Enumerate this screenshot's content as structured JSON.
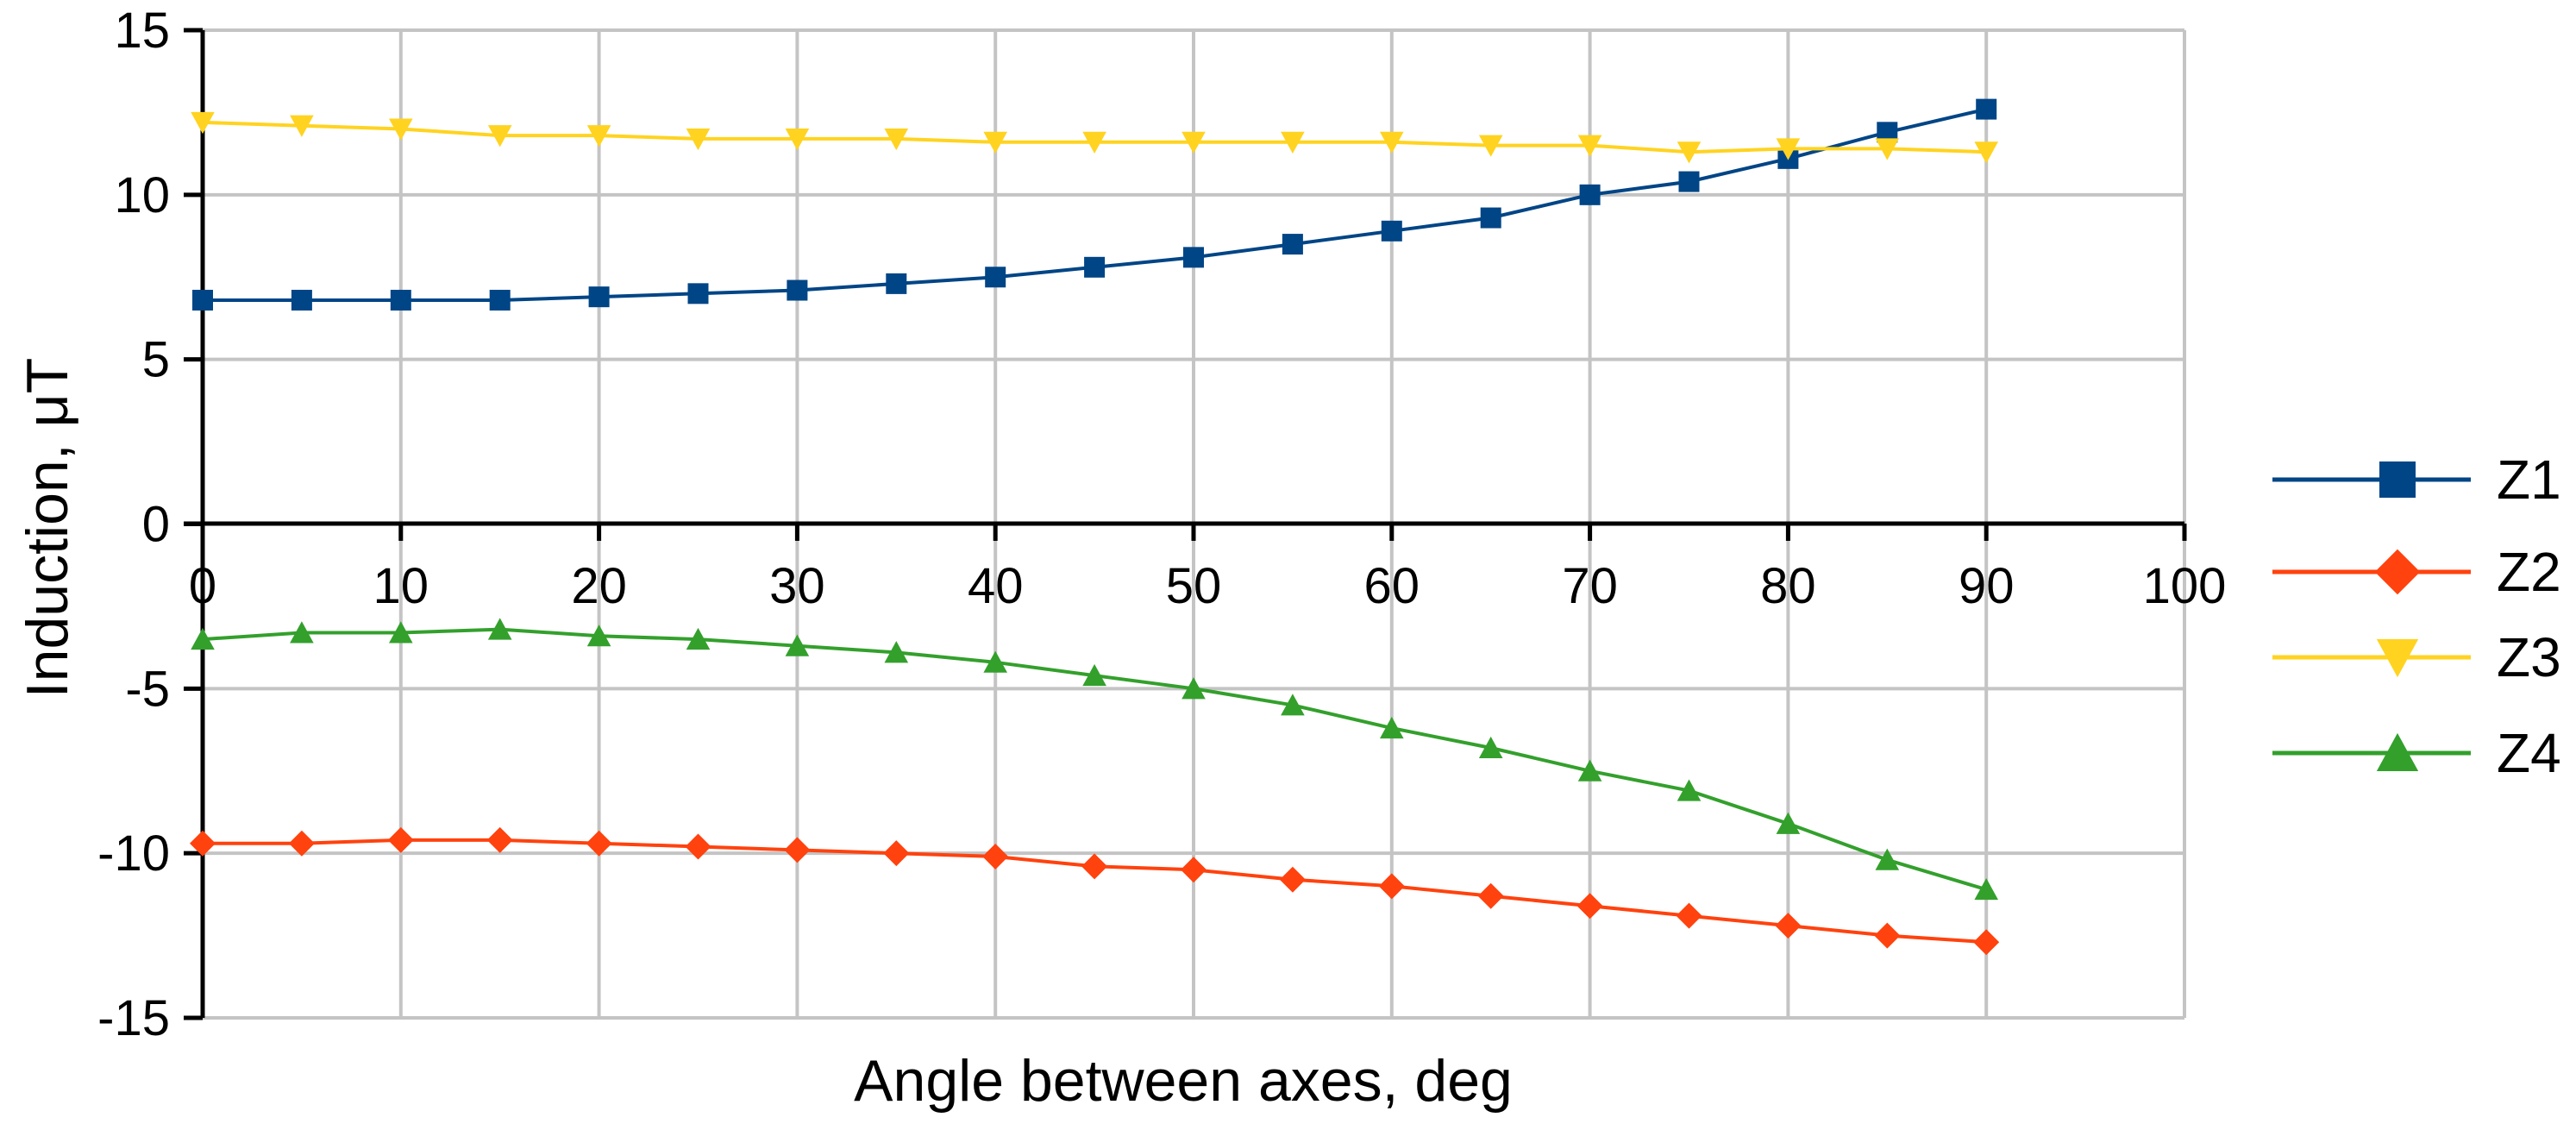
{
  "chart_data": {
    "type": "line",
    "title": "",
    "xlabel": "Angle between axes, deg",
    "ylabel": "Induction, μT",
    "xlim": [
      0,
      100
    ],
    "ylim": [
      -15,
      15
    ],
    "xticks": [
      0,
      10,
      20,
      30,
      40,
      50,
      60,
      70,
      80,
      90,
      100
    ],
    "yticks": [
      15,
      10,
      5,
      0,
      -5,
      -10,
      -15
    ],
    "grid": true,
    "legend_position": "right",
    "x": [
      0,
      5,
      10,
      15,
      20,
      25,
      30,
      35,
      40,
      45,
      50,
      55,
      60,
      65,
      70,
      75,
      80,
      85,
      90
    ],
    "series": [
      {
        "name": "Z1",
        "color": "#004586",
        "marker": "square",
        "values": [
          6.8,
          6.8,
          6.8,
          6.8,
          6.9,
          7.0,
          7.1,
          7.3,
          7.5,
          7.8,
          8.1,
          8.5,
          8.9,
          9.3,
          10.0,
          10.4,
          11.1,
          11.9,
          12.6
        ]
      },
      {
        "name": "Z2",
        "color": "#ff420e",
        "marker": "diamond",
        "values": [
          -9.7,
          -9.7,
          -9.6,
          -9.6,
          -9.7,
          -9.8,
          -9.9,
          -10.0,
          -10.1,
          -10.4,
          -10.5,
          -10.8,
          -11.0,
          -11.3,
          -11.6,
          -11.9,
          -12.2,
          -12.5,
          -12.7
        ]
      },
      {
        "name": "Z3",
        "color": "#ffd320",
        "marker": "triangle-down",
        "values": [
          12.2,
          12.1,
          12.0,
          11.8,
          11.8,
          11.7,
          11.7,
          11.7,
          11.6,
          11.6,
          11.6,
          11.6,
          11.6,
          11.5,
          11.5,
          11.3,
          11.4,
          11.4,
          11.3
        ]
      },
      {
        "name": "Z4",
        "color": "#33a02c",
        "marker": "triangle-up",
        "values": [
          -3.5,
          -3.3,
          -3.3,
          -3.2,
          -3.4,
          -3.5,
          -3.7,
          -3.9,
          -4.2,
          -4.6,
          -5.0,
          -5.5,
          -6.2,
          -6.8,
          -7.5,
          -8.1,
          -9.1,
          -10.2,
          -11.1
        ]
      }
    ]
  }
}
